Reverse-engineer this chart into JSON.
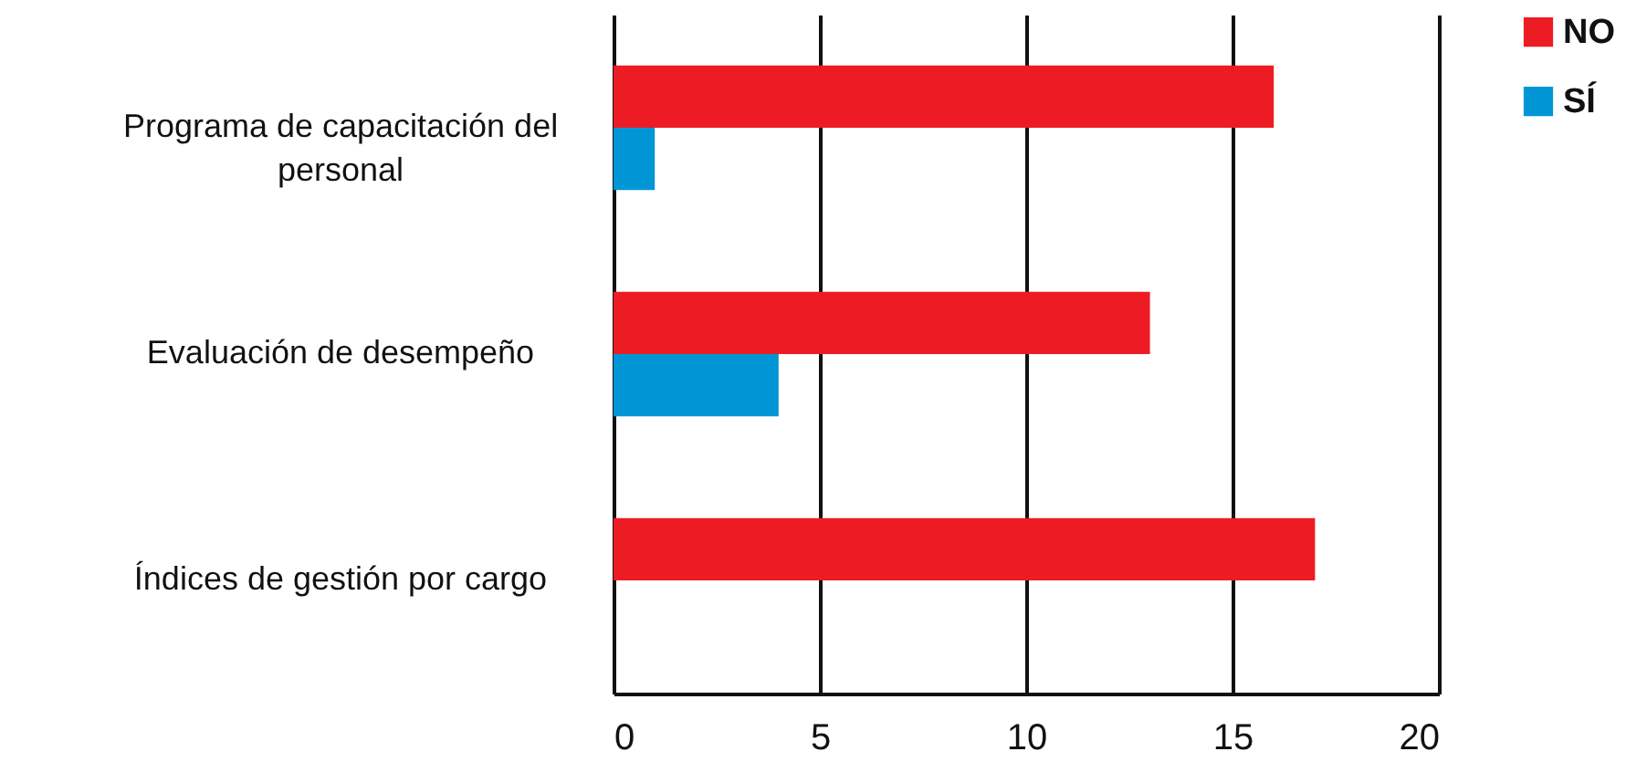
{
  "chart_data": {
    "type": "bar",
    "orientation": "horizontal",
    "categories": [
      "Programa de capacitación del personal",
      "Evaluación de desempeño",
      "Índices de gestión por cargo"
    ],
    "series": [
      {
        "name": "NO",
        "color": "#ed1c24",
        "values": [
          16,
          13,
          17
        ]
      },
      {
        "name": "SÍ",
        "color": "#0096d6",
        "values": [
          1,
          4,
          0
        ]
      }
    ],
    "xlim": [
      0,
      20
    ],
    "xticks": [
      0,
      5,
      10,
      15,
      20
    ],
    "grid": "x",
    "legend": "right"
  }
}
